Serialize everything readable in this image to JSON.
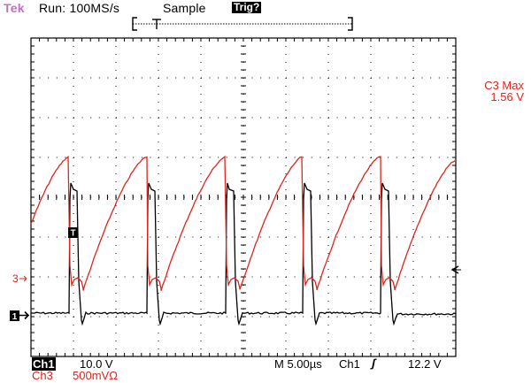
{
  "status_bar": {
    "brand": "Tek",
    "run": "Run: 100MS/s",
    "mode": "Sample",
    "trigger_status": "Trig?"
  },
  "measurement": {
    "label": "C3 Max",
    "value": "1.56 V"
  },
  "markers": {
    "ch3_marker": "3",
    "ch1_marker": "1",
    "trigger_marker": "T"
  },
  "bottom_readout": {
    "ch1_name": "Ch1",
    "ch1_scale": "10.0 V",
    "ch3_name": "Ch3",
    "ch3_scale": "500mVΩ",
    "timebase": "M 5.00µs",
    "trigger_source": "Ch1",
    "trigger_slope": "ʃ",
    "trigger_level": "12.2 V"
  },
  "colors": {
    "ch1_trace": "#000000",
    "ch3_trace": "#e0241d",
    "brand": "#c070c0",
    "graticule": "#000000"
  },
  "graticule": {
    "divisions_x": 10,
    "divisions_y": 8
  }
}
